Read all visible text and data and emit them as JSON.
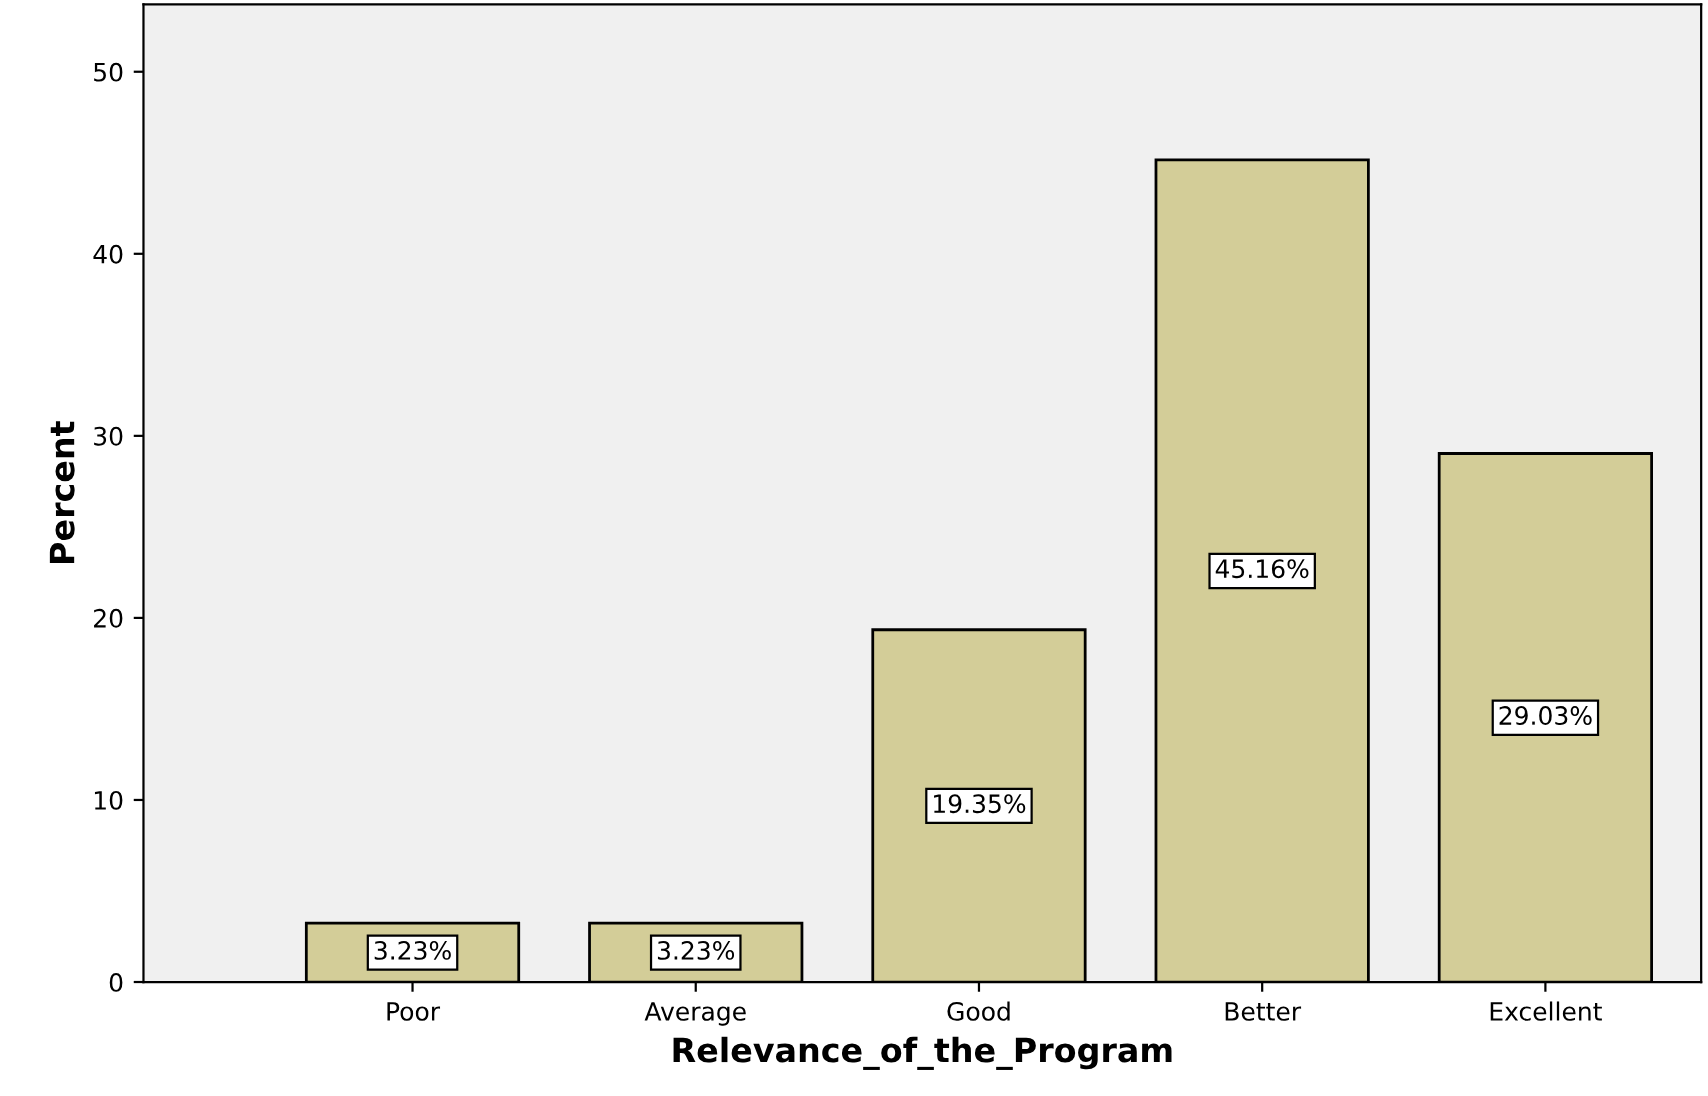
{
  "chart_data": {
    "type": "bar",
    "xlabel": "Relevance_of_the_Program",
    "ylabel": "Percent",
    "categories": [
      "Poor",
      "Average",
      "Good",
      "Better",
      "Excellent"
    ],
    "values": [
      3.23,
      3.23,
      19.35,
      45.16,
      29.03
    ],
    "value_labels": [
      "3.23%",
      "3.23%",
      "19.35%",
      "45.16%",
      "29.03%"
    ],
    "color": "#d3cd98",
    "ylim": [
      0,
      53.7
    ],
    "yticks": [
      0,
      10,
      20,
      30,
      40,
      50
    ],
    "grid": false,
    "legend": false
  }
}
